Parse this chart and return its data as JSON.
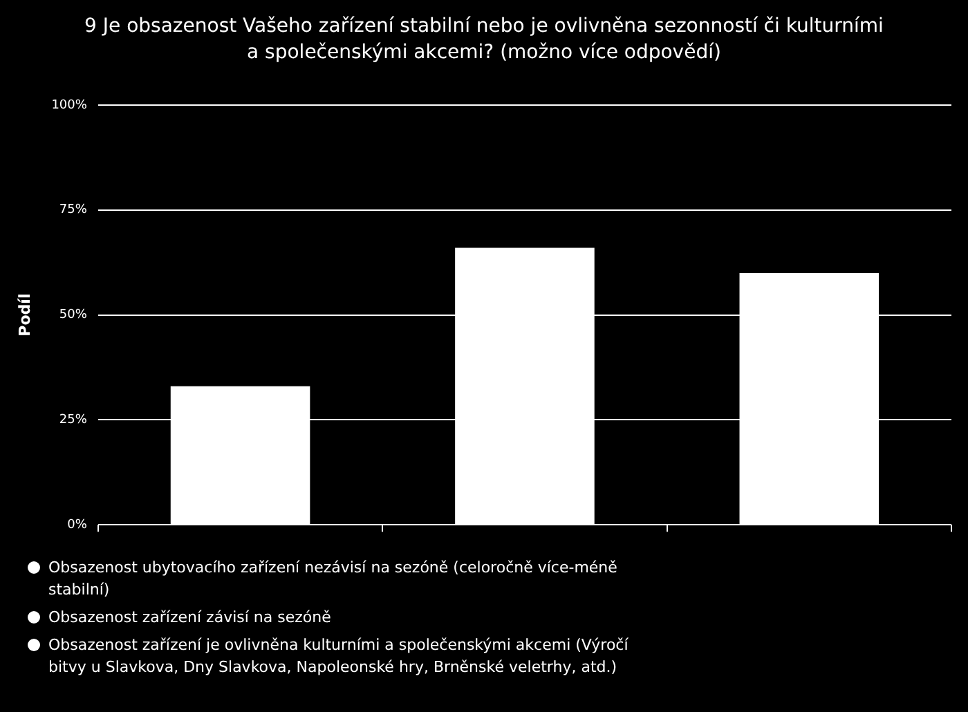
{
  "chart_data": {
    "type": "bar",
    "title": "9 Je obsazenost Vašeho zařízení stabilní nebo je ovlivněna sezonností či kulturními a společenskými akcemi? (možno více odpovědí)",
    "ylabel": "Podíl",
    "categories": [
      null,
      null,
      null
    ],
    "series": [
      {
        "name": "Obsazenost ubytovacího zařízení nezávisí na sezóně (celoročně více-méně stabilní)",
        "color": "#ffffff",
        "values": [
          33,
          null,
          null
        ]
      },
      {
        "name": "Obsazenost zařízení závisí na sezóně",
        "color": "#ffffff",
        "values": [
          null,
          66,
          null
        ]
      },
      {
        "name": "Obsazenost zařízení je ovlivněna kulturními a společenskými akcemi (Výročí bitvy u Slavkova, Dny Slavkova, Napoleonské hry, Brněnské veletrhy, atd.)",
        "color": "#ffffff",
        "values": [
          null,
          null,
          60
        ]
      }
    ],
    "ylim": [
      0,
      100
    ],
    "yticks": [
      {
        "value": 0,
        "label": "0%"
      },
      {
        "value": 25,
        "label": "25%"
      },
      {
        "value": 50,
        "label": "50%"
      },
      {
        "value": 75,
        "label": "75%"
      },
      {
        "value": 100,
        "label": "100%"
      }
    ],
    "grid": "y",
    "legend": "bottom"
  }
}
